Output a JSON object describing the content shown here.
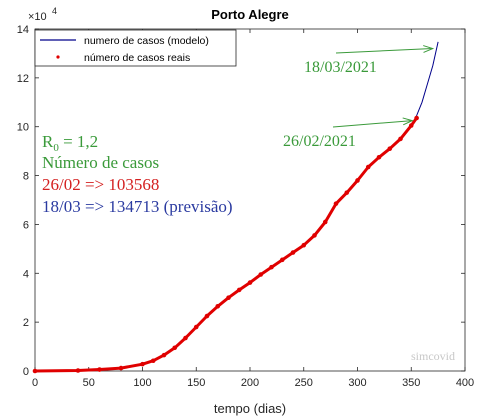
{
  "chart_data": {
    "type": "line",
    "title": "Porto Alegre",
    "xlabel": "tempo (dias)",
    "ylabel": "",
    "y_exponent_label": "×10",
    "y_exponent_power": "4",
    "xlim": [
      0,
      400
    ],
    "ylim": [
      0,
      140000
    ],
    "x_ticks": [
      0,
      50,
      100,
      150,
      200,
      250,
      300,
      350,
      400
    ],
    "y_ticks": [
      0,
      20000,
      40000,
      60000,
      80000,
      100000,
      120000,
      140000
    ],
    "x_tick_labels": [
      "0",
      "50",
      "100",
      "150",
      "200",
      "250",
      "300",
      "350",
      "400"
    ],
    "y_tick_labels": [
      "0",
      "2",
      "4",
      "6",
      "8",
      "10",
      "12",
      "14"
    ],
    "grid": false,
    "legend_placement": "top-left",
    "series": [
      {
        "name": "numero de casos (modelo)",
        "color": "#00008b",
        "style": "line",
        "x": [
          0,
          40,
          60,
          80,
          100,
          110,
          120,
          130,
          140,
          150,
          160,
          170,
          180,
          190,
          200,
          210,
          220,
          230,
          240,
          250,
          260,
          270,
          280,
          290,
          300,
          310,
          320,
          330,
          340,
          350,
          355,
          360,
          365,
          370,
          375
        ],
        "y": [
          0,
          200,
          600,
          1200,
          2800,
          4200,
          6500,
          9500,
          13500,
          18000,
          22500,
          26500,
          30000,
          33200,
          36200,
          39500,
          42500,
          45500,
          48500,
          51500,
          55500,
          61000,
          68500,
          73000,
          78000,
          83500,
          87500,
          91000,
          95000,
          100500,
          104500,
          110000,
          117500,
          125000,
          134713
        ]
      },
      {
        "name": "número de casos reais",
        "color": "#e00000",
        "style": "dots",
        "x": [
          0,
          40,
          60,
          80,
          100,
          110,
          120,
          130,
          140,
          150,
          160,
          170,
          180,
          190,
          200,
          210,
          220,
          230,
          240,
          250,
          260,
          270,
          280,
          290,
          300,
          310,
          320,
          330,
          340,
          350,
          355
        ],
        "y": [
          0,
          200,
          600,
          1200,
          2800,
          4200,
          6500,
          9500,
          13500,
          18000,
          22500,
          26500,
          30000,
          33200,
          36200,
          39500,
          42500,
          45500,
          48500,
          51500,
          55500,
          61000,
          68500,
          73000,
          78000,
          83500,
          87500,
          91000,
          95000,
          100500,
          103568
        ]
      }
    ],
    "annotations": {
      "arrow1_label": "18/03/2021",
      "arrow2_label": "26/02/2021",
      "r0_prefix": "R",
      "r0_sub": "0",
      "r0_suffix": " = 1,2",
      "cases_title": "Número de casos",
      "line_real": "26/02 => 103568",
      "line_forecast": "18/03 => 134713 (previsão)",
      "watermark": "simcovid",
      "green": "#3a9a3a",
      "red": "#d42020",
      "blue": "#2a3aa0"
    }
  }
}
